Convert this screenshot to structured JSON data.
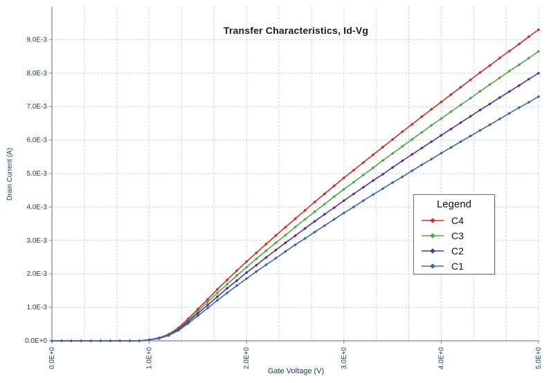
{
  "chart": {
    "title": "Transfer Characteristics, Id-Vg",
    "xlabel": "Gate Voltage (V)",
    "ylabel": "Drain Current (A)"
  },
  "legend": {
    "title": "Legend"
  },
  "colors": {
    "grid": "#cdd2d9",
    "axis": "#808080",
    "tick_text": "#17375e"
  },
  "chart_data": {
    "type": "line",
    "title": "Transfer Characteristics, Id-Vg",
    "xlabel": "Gate Voltage (V)",
    "ylabel": "Drain Current (A)",
    "xlim": [
      0,
      5
    ],
    "ylim": [
      0,
      0.00998
    ],
    "grid": true,
    "legend_position": "middle-right",
    "x_grid_divisions": 15,
    "y_grid_step": 0.001,
    "x_tick_values": [
      0,
      1,
      2,
      3,
      4,
      5
    ],
    "x_tick_labels": [
      "0.0E+0",
      "1.0E+0",
      "2.0E+0",
      "3.0E+0",
      "4.0E+0",
      "5.0E+0"
    ],
    "y_tick_values": [
      0,
      0.001,
      0.002,
      0.003,
      0.004,
      0.005,
      0.006,
      0.007,
      0.008,
      0.009
    ],
    "y_tick_labels": [
      "0.0E+0",
      "1.0E-3",
      "2.0E-3",
      "3.0E-3",
      "4.0E-3",
      "5.0E-3",
      "6.0E-3",
      "7.0E-3",
      "8.0E-3",
      "9.0E-3"
    ],
    "x": [
      0,
      0.1,
      0.2,
      0.3,
      0.4,
      0.5,
      0.6,
      0.7,
      0.8,
      0.9,
      1,
      1.1,
      1.2,
      1.3,
      1.4,
      1.5,
      1.6,
      1.7,
      1.8,
      1.9,
      2,
      2.1,
      2.2,
      2.3,
      2.4,
      2.5,
      2.6,
      2.7,
      2.8,
      2.9,
      3,
      3.1,
      3.2,
      3.3,
      3.4,
      3.5,
      3.6,
      3.7,
      3.8,
      3.9,
      4,
      4.1,
      4.2,
      4.3,
      4.4,
      4.5,
      4.6,
      4.7,
      4.8,
      4.9,
      5
    ],
    "series": [
      {
        "name": "C4",
        "color": "#d02b27",
        "values": [
          0,
          0,
          0,
          0,
          0,
          0,
          0,
          0,
          0,
          0,
          3.6e-05,
          8.8e-05,
          0.0002,
          0.00039,
          0.00066,
          0.00095,
          0.00124,
          0.00154,
          0.00182,
          0.0021,
          0.00237,
          0.00263,
          0.00289,
          0.00315,
          0.0034,
          0.00365,
          0.0039,
          0.00415,
          0.00439,
          0.00463,
          0.00487,
          0.0051,
          0.00533,
          0.00556,
          0.00579,
          0.00602,
          0.00625,
          0.00647,
          0.0067,
          0.00692,
          0.00714,
          0.00736,
          0.00758,
          0.0078,
          0.00802,
          0.00823,
          0.00845,
          0.00866,
          0.00887,
          0.00909,
          0.0093
        ]
      },
      {
        "name": "C3",
        "color": "#52a447",
        "values": [
          0,
          0,
          0,
          0,
          0,
          0,
          0,
          0,
          0,
          0,
          3.3e-05,
          8.2e-05,
          0.00019,
          0.00036,
          0.00061,
          0.00088,
          0.00116,
          0.00143,
          0.00169,
          0.00195,
          0.0022,
          0.00245,
          0.00269,
          0.00293,
          0.00316,
          0.0034,
          0.00363,
          0.00386,
          0.00408,
          0.00431,
          0.00453,
          0.00474,
          0.00496,
          0.00517,
          0.00539,
          0.0056,
          0.00581,
          0.00602,
          0.00623,
          0.00644,
          0.00664,
          0.00685,
          0.00705,
          0.00725,
          0.00746,
          0.00766,
          0.00786,
          0.00806,
          0.00825,
          0.00845,
          0.00865
        ]
      },
      {
        "name": "C2",
        "color": "#5c2d8f",
        "values": [
          0,
          0,
          0,
          0,
          0,
          0,
          0,
          0,
          0,
          0,
          3.1e-05,
          7.6e-05,
          0.00017,
          0.00034,
          0.00057,
          0.00082,
          0.00107,
          0.00132,
          0.00157,
          0.0018,
          0.00204,
          0.00226,
          0.00249,
          0.00271,
          0.00293,
          0.00314,
          0.00336,
          0.00357,
          0.00378,
          0.00398,
          0.00419,
          0.00439,
          0.00459,
          0.00479,
          0.00498,
          0.00518,
          0.00538,
          0.00557,
          0.00576,
          0.00595,
          0.00614,
          0.00633,
          0.00652,
          0.00671,
          0.0069,
          0.00708,
          0.00727,
          0.00745,
          0.00763,
          0.00782,
          0.008
        ]
      },
      {
        "name": "C1",
        "color": "#3a66a7",
        "values": [
          0,
          0,
          0,
          0,
          0,
          0,
          0,
          0,
          0,
          0,
          2.8e-05,
          6.9e-05,
          0.00016,
          0.00031,
          0.00052,
          0.00075,
          0.00098,
          0.00121,
          0.00143,
          0.00165,
          0.00186,
          0.00207,
          0.00227,
          0.00247,
          0.00267,
          0.00287,
          0.00306,
          0.00325,
          0.00344,
          0.00363,
          0.00382,
          0.004,
          0.00419,
          0.00437,
          0.00455,
          0.00473,
          0.0049,
          0.00508,
          0.00526,
          0.00543,
          0.00561,
          0.00578,
          0.00595,
          0.00612,
          0.00629,
          0.00646,
          0.00663,
          0.0068,
          0.00697,
          0.00713,
          0.0073
        ]
      }
    ]
  }
}
